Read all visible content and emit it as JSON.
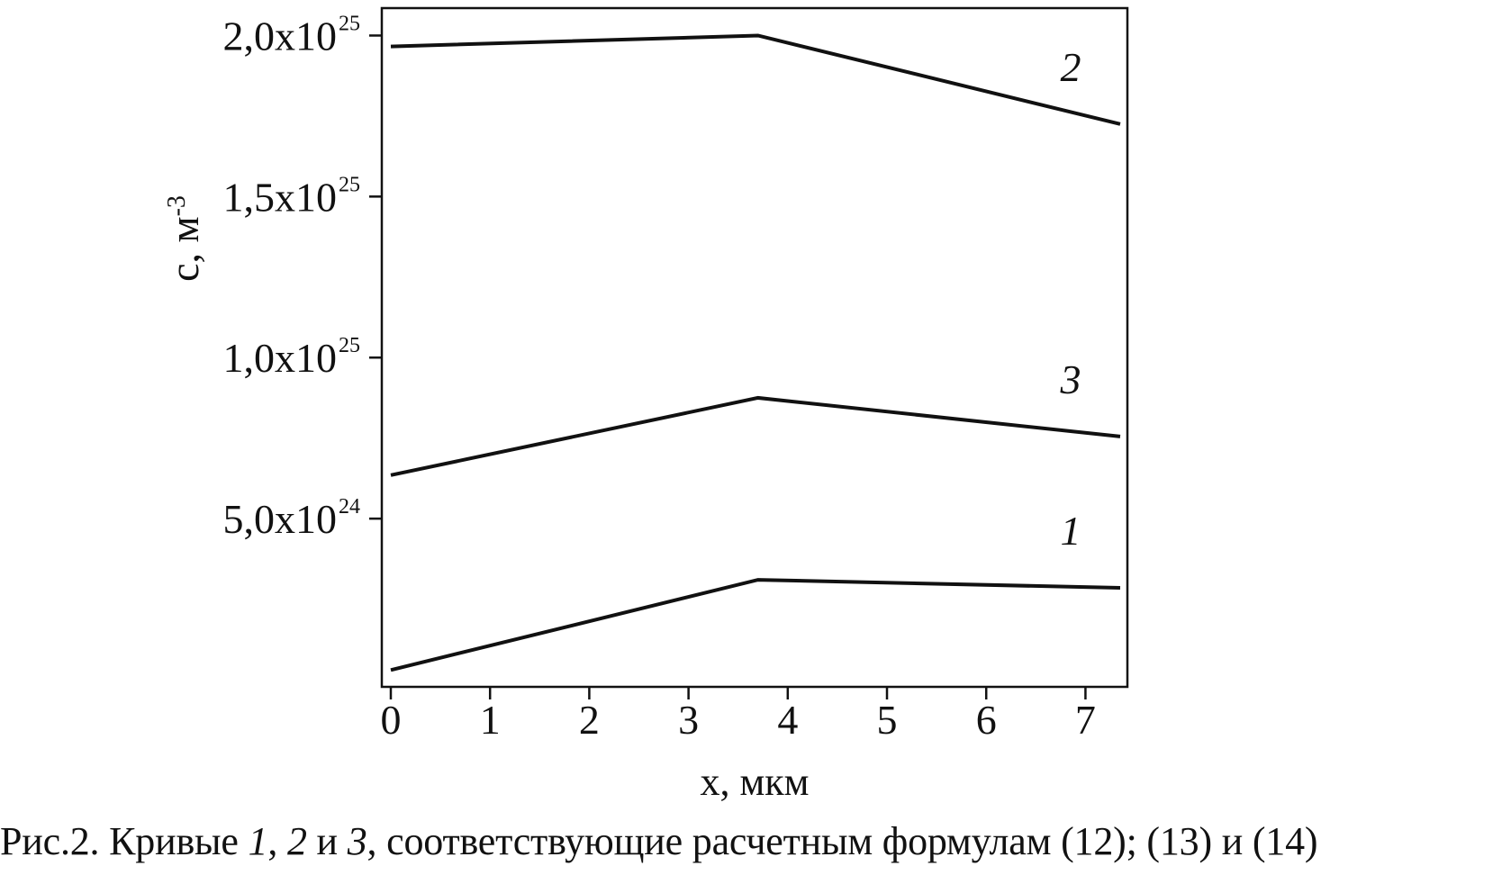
{
  "chart_data": {
    "type": "line",
    "xlabel": "x, мкм",
    "ylabel_base": "c, м",
    "ylabel_sup": "-3",
    "xlim": [
      0,
      7.35
    ],
    "ylim": [
      0,
      2.06e+25
    ],
    "x_ticks": [
      0,
      1,
      2,
      3,
      4,
      5,
      6,
      7
    ],
    "y_ticks": [
      {
        "value": 5e+24,
        "mantissa": "5,0x10",
        "exp": "24"
      },
      {
        "value": 1e+25,
        "mantissa": "1,0x10",
        "exp": "25"
      },
      {
        "value": 1.5e+25,
        "mantissa": "1,5x10",
        "exp": "25"
      },
      {
        "value": 2e+25,
        "mantissa": "2,0x10",
        "exp": "25"
      }
    ],
    "series": [
      {
        "name": "1",
        "x": [
          0,
          3.7,
          7.35
        ],
        "y": [
          3e+23,
          3.1e+24,
          2.85e+24
        ]
      },
      {
        "name": "2",
        "x": [
          0,
          3.7,
          7.35
        ],
        "y": [
          1.966e+25,
          2e+25,
          1.725e+25
        ]
      },
      {
        "name": "3",
        "x": [
          0,
          3.7,
          7.35
        ],
        "y": [
          6.35e+24,
          8.75e+24,
          7.55e+24
        ]
      }
    ],
    "grid": false,
    "legend": "curve labels next to line ends"
  },
  "caption": {
    "prefix": "Рис.2. Кривые ",
    "n1": "1",
    "sep1": ", ",
    "n2": "2",
    "sep2": " и ",
    "n3": "3",
    "suffix": ", соответствующие расчетным формулам (12); (13) и (14)"
  }
}
